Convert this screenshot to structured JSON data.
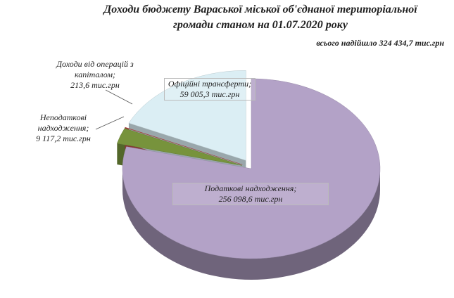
{
  "chart_data": {
    "type": "pie",
    "title": "Доходи  бюджету Вараської міської об'єднаної територіальної громади станом на 01.07.2020 року",
    "subtitle": "всього надійшло 324 434,7 тис.грн",
    "categories": [
      "Податкові надходження;",
      "Неподаткові надходження;",
      "Доходи від операцій з капіталом;",
      "Офіційні трансферти;"
    ],
    "values": [
      256098.6,
      9117.2,
      213.6,
      59005.3
    ],
    "value_labels": [
      "256 098,6 тис.грн",
      "9 117,2 тис.грн",
      "213,6 тис.грн",
      "59 005,3 тис.грн"
    ],
    "colors": [
      "#b3a2c7",
      "#77933c",
      "#c0504d",
      "#dbeef4"
    ]
  }
}
